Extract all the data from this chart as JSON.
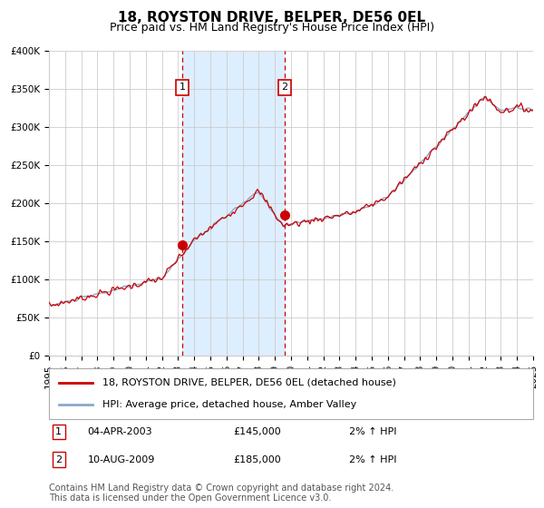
{
  "title": "18, ROYSTON DRIVE, BELPER, DE56 0EL",
  "subtitle": "Price paid vs. HM Land Registry's House Price Index (HPI)",
  "ylim": [
    0,
    400000
  ],
  "yticks": [
    0,
    50000,
    100000,
    150000,
    200000,
    250000,
    300000,
    350000,
    400000
  ],
  "ytick_labels": [
    "£0",
    "£50K",
    "£100K",
    "£150K",
    "£200K",
    "£250K",
    "£300K",
    "£350K",
    "£400K"
  ],
  "transactions": [
    {
      "label": "1",
      "year": 2003.25,
      "price": 145000,
      "date": "04-APR-2003",
      "hpi_pct": "2%",
      "direction": "↑"
    },
    {
      "label": "2",
      "year": 2009.6,
      "price": 185000,
      "date": "10-AUG-2009",
      "hpi_pct": "2%",
      "direction": "↑"
    }
  ],
  "legend_line1": "18, ROYSTON DRIVE, BELPER, DE56 0EL (detached house)",
  "legend_line2": "HPI: Average price, detached house, Amber Valley",
  "footnote1": "Contains HM Land Registry data © Crown copyright and database right 2024.",
  "footnote2": "This data is licensed under the Open Government Licence v3.0.",
  "line_color_red": "#cc0000",
  "line_color_blue": "#88aacc",
  "shade_color": "#ddeeff",
  "vline_color": "#cc0000",
  "box_color": "#cc0000",
  "background_color": "#ffffff",
  "grid_color": "#cccccc",
  "title_fontsize": 11,
  "subtitle_fontsize": 9,
  "tick_fontsize": 7.5,
  "legend_fontsize": 8,
  "footnote_fontsize": 7
}
